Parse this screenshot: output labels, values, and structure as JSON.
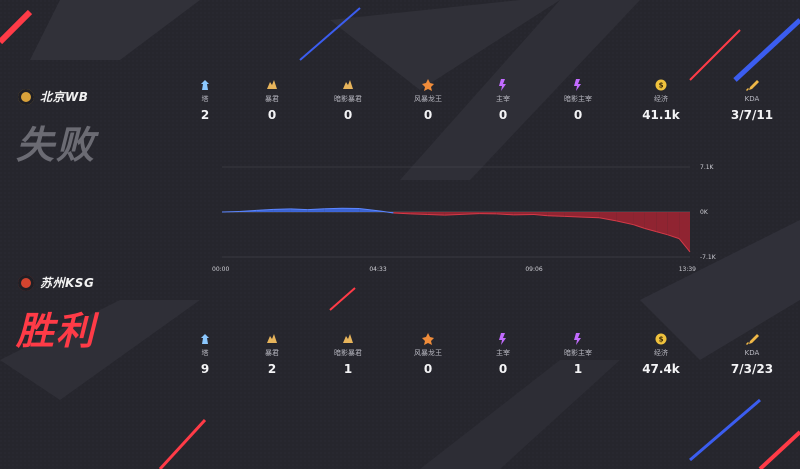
{
  "teams": [
    {
      "name": "北京WB",
      "result": "失败",
      "logo_color": "#d8a13a",
      "stats": [
        {
          "icon": "tower-icon",
          "label": "塔",
          "value": "2",
          "color": "#8cc8ff"
        },
        {
          "icon": "tyrant-icon",
          "label": "暴君",
          "value": "0",
          "color": "#e7b45b"
        },
        {
          "icon": "shadow-tyrant-icon",
          "label": "暗影暴君",
          "value": "0",
          "color": "#e7b45b"
        },
        {
          "icon": "storm-dragon-icon",
          "label": "风暴龙王",
          "value": "0",
          "color": "#f08c3a"
        },
        {
          "icon": "overlord-icon",
          "label": "主宰",
          "value": "0",
          "color": "#c26bff"
        },
        {
          "icon": "shadow-overlord-icon",
          "label": "暗影主宰",
          "value": "0",
          "color": "#c26bff"
        },
        {
          "icon": "gold-icon",
          "label": "经济",
          "value": "41.1k",
          "color": "#f0c23d"
        },
        {
          "icon": "sword-icon",
          "label": "KDA",
          "value": "3/7/11",
          "color": "#f0b847"
        }
      ]
    },
    {
      "name": "苏州KSG",
      "result": "胜利",
      "logo_color": "#d2442f",
      "stats": [
        {
          "icon": "tower-icon",
          "label": "塔",
          "value": "9",
          "color": "#8cc8ff"
        },
        {
          "icon": "tyrant-icon",
          "label": "暴君",
          "value": "2",
          "color": "#e7b45b"
        },
        {
          "icon": "shadow-tyrant-icon",
          "label": "暗影暴君",
          "value": "1",
          "color": "#e7b45b"
        },
        {
          "icon": "storm-dragon-icon",
          "label": "风暴龙王",
          "value": "0",
          "color": "#f08c3a"
        },
        {
          "icon": "overlord-icon",
          "label": "主宰",
          "value": "0",
          "color": "#c26bff"
        },
        {
          "icon": "shadow-overlord-icon",
          "label": "暗影主宰",
          "value": "1",
          "color": "#c26bff"
        },
        {
          "icon": "gold-icon",
          "label": "经济",
          "value": "47.4k",
          "color": "#f0c23d"
        },
        {
          "icon": "sword-icon",
          "label": "KDA",
          "value": "7/3/23",
          "color": "#f0b847"
        }
      ]
    }
  ],
  "chart_data": {
    "type": "area",
    "x_ticks": [
      "00:00",
      "04:33",
      "09:06",
      "13:39"
    ],
    "y_ticks": [
      "7.1K",
      "0K",
      "-7.1K"
    ],
    "ylim": [
      -7100,
      7100
    ],
    "x_range_seconds": [
      0,
      819
    ],
    "colors": {
      "positive": "#3f6ef0",
      "negative": "#a32532"
    },
    "x": [
      0,
      30,
      60,
      90,
      120,
      150,
      180,
      210,
      240,
      273,
      300,
      330,
      360,
      390,
      420,
      450,
      480,
      510,
      546,
      570,
      600,
      630,
      660,
      690,
      720,
      740,
      760,
      780,
      800,
      819
    ],
    "values": [
      0,
      80,
      250,
      420,
      500,
      380,
      520,
      600,
      550,
      200,
      -150,
      -300,
      -400,
      -500,
      -380,
      -250,
      -300,
      -450,
      -400,
      -600,
      -700,
      -800,
      -900,
      -1400,
      -2000,
      -2600,
      -3100,
      -3600,
      -4200,
      -6300
    ]
  }
}
